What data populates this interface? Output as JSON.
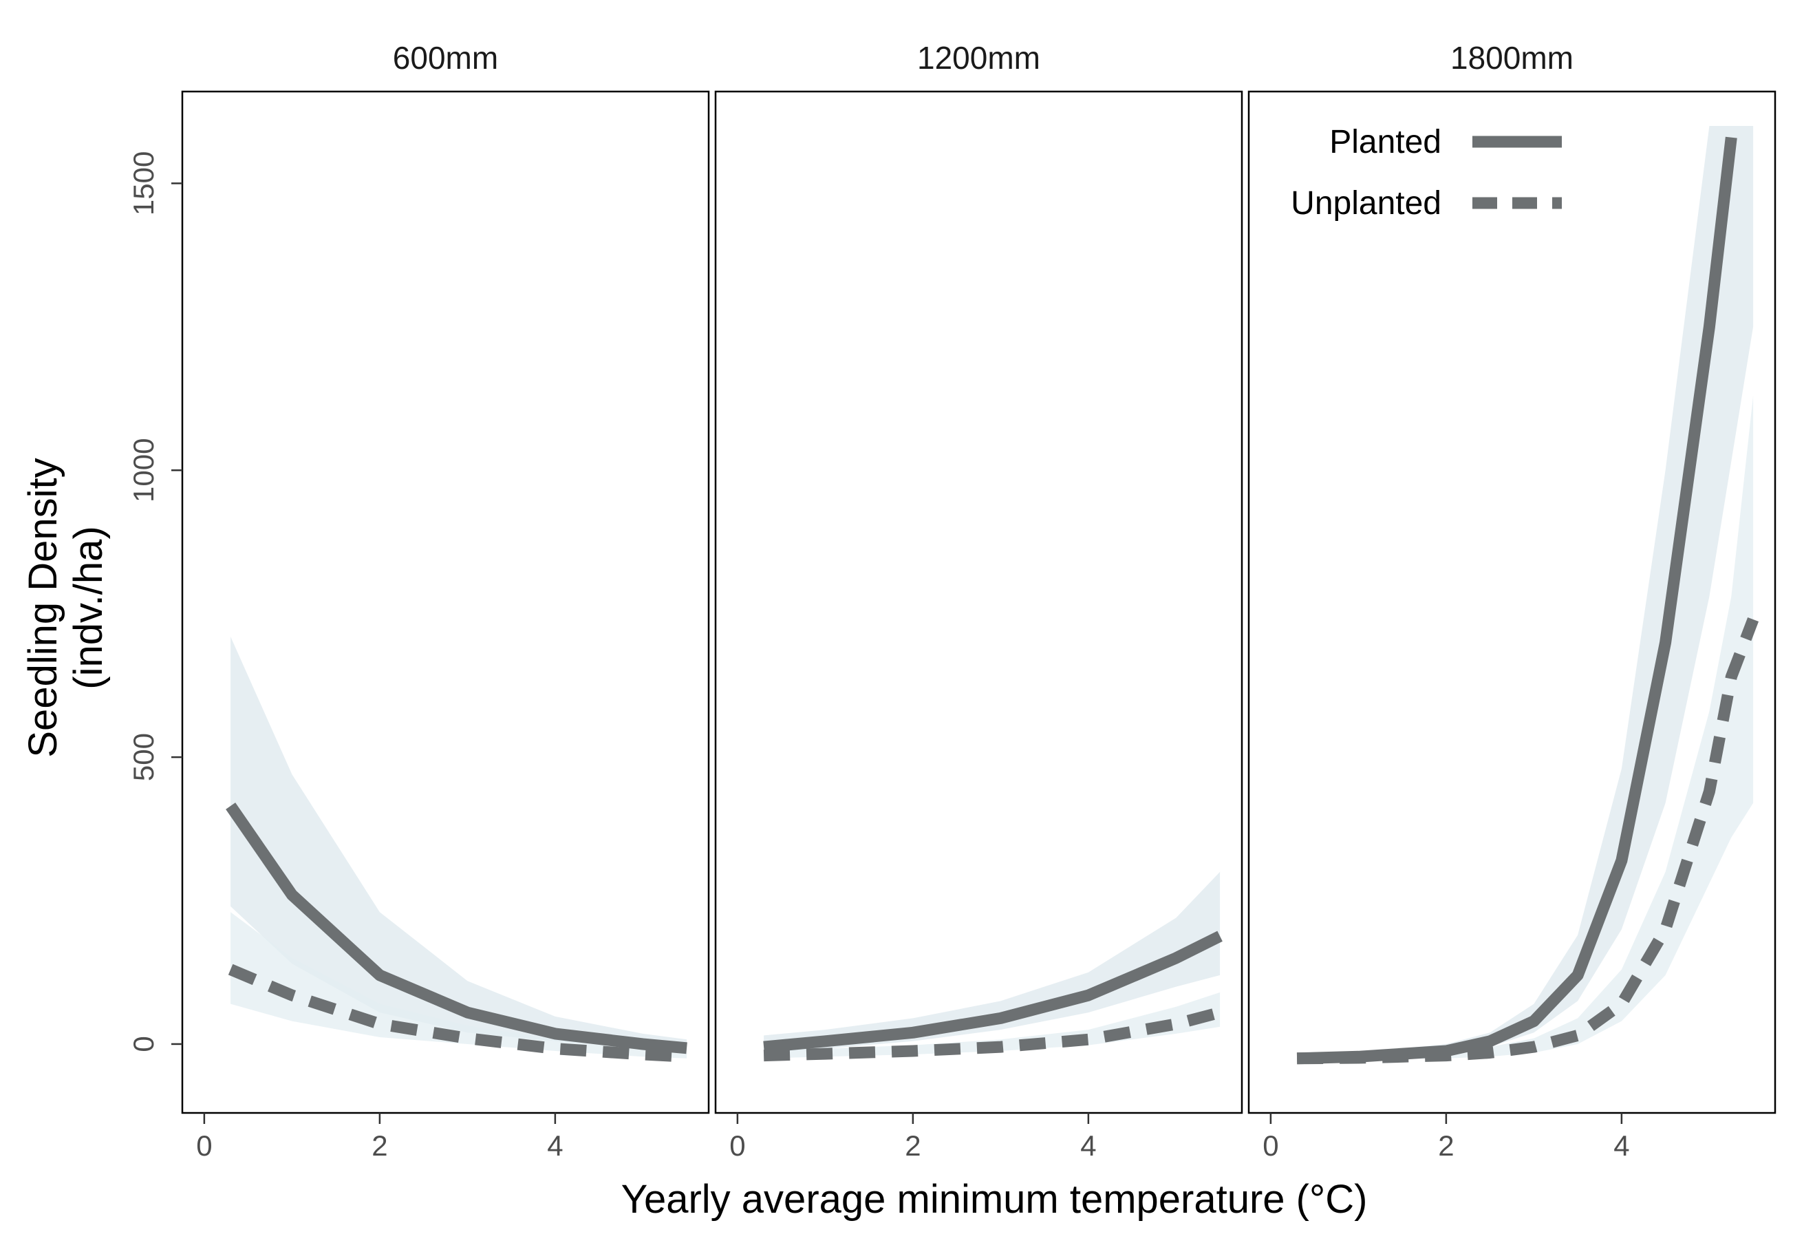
{
  "chart_data": {
    "type": "line",
    "xlabel": "Yearly average minimum temperature (°C)",
    "ylabel_lines": [
      "Seedling Density",
      "(indv./ha)"
    ],
    "xlim": [
      -0.25,
      5.75
    ],
    "ylim": [
      -120,
      1660
    ],
    "xticks": [
      0,
      2,
      4
    ],
    "yticks": [
      0,
      500,
      1000,
      1500
    ],
    "colors": {
      "line": "#6c7072",
      "ribbon_planted": "#dde8ee",
      "ribbon_unplanted": "#e3edf2"
    },
    "legend": {
      "position": "top-right of last panel",
      "entries": [
        {
          "label": "Planted",
          "style": "solid"
        },
        {
          "label": "Unplanted",
          "style": "dashed"
        }
      ]
    },
    "panels": [
      {
        "title": "600mm",
        "x": [
          0.3,
          1.0,
          2.0,
          3.0,
          4.0,
          5.0,
          5.5
        ],
        "series": [
          {
            "name": "Planted",
            "style": "solid",
            "y": [
              415,
              260,
              120,
              55,
              18,
              0,
              -7
            ],
            "lower": [
              240,
              140,
              55,
              20,
              5,
              -5,
              -10
            ],
            "upper": [
              710,
              470,
              230,
              110,
              48,
              18,
              8
            ]
          },
          {
            "name": "Unplanted",
            "style": "dashed",
            "y": [
              130,
              85,
              35,
              10,
              -8,
              -18,
              -22
            ],
            "lower": [
              70,
              40,
              12,
              0,
              -12,
              -22,
              -25
            ],
            "upper": [
              230,
              150,
              70,
              32,
              8,
              -8,
              -15
            ]
          }
        ]
      },
      {
        "title": "1200mm",
        "x": [
          0.3,
          1.0,
          2.0,
          3.0,
          4.0,
          5.0,
          5.5
        ],
        "series": [
          {
            "name": "Planted",
            "style": "solid",
            "y": [
              -5,
              5,
              20,
              45,
              85,
              150,
              188
            ],
            "lower": [
              -15,
              -8,
              5,
              25,
              55,
              100,
              120
            ],
            "upper": [
              15,
              25,
              45,
              75,
              125,
              220,
              300
            ]
          },
          {
            "name": "Unplanted",
            "style": "dashed",
            "y": [
              -20,
              -17,
              -12,
              -5,
              8,
              35,
              55
            ],
            "lower": [
              -25,
              -22,
              -18,
              -12,
              -2,
              18,
              30
            ],
            "upper": [
              -12,
              -8,
              -2,
              8,
              25,
              65,
              90
            ]
          }
        ]
      },
      {
        "title": "1800mm",
        "x": [
          0.3,
          1.0,
          2.0,
          2.5,
          3.0,
          3.5,
          4.0,
          4.5,
          5.0,
          5.25,
          5.5
        ],
        "series": [
          {
            "name": "Planted",
            "style": "solid",
            "x": [
              0.3,
              1.0,
              2.0,
              2.5,
              3.0,
              3.5,
              4.0,
              4.5,
              5.0,
              5.25
            ],
            "y": [
              -25,
              -22,
              -12,
              5,
              40,
              120,
              320,
              700,
              1250,
              1580
            ],
            "lower_x": [
              0.3,
              1.0,
              2.0,
              2.5,
              3.0,
              3.5,
              4.0,
              4.5,
              5.0,
              5.5
            ],
            "lower": [
              -30,
              -28,
              -20,
              -5,
              20,
              75,
              200,
              420,
              780,
              1250
            ],
            "upper_x": [
              0.3,
              1.0,
              2.0,
              2.5,
              3.0,
              3.5,
              4.0,
              4.5,
              5.0,
              5.5
            ],
            "upper": [
              -20,
              -15,
              0,
              20,
              70,
              190,
              480,
              1000,
              1600,
              1600
            ]
          },
          {
            "name": "Unplanted",
            "style": "dashed",
            "x": [
              0.3,
              1.0,
              2.0,
              2.5,
              3.0,
              3.5,
              4.0,
              4.5,
              5.0,
              5.25,
              5.5
            ],
            "y": [
              -25,
              -24,
              -20,
              -15,
              -5,
              15,
              70,
              200,
              440,
              640,
              740
            ],
            "lower": [
              -28,
              -27,
              -25,
              -22,
              -15,
              0,
              40,
              120,
              280,
              360,
              420
            ],
            "upper": [
              -20,
              -18,
              -12,
              -5,
              10,
              45,
              130,
              300,
              580,
              780,
              1130
            ]
          }
        ]
      }
    ]
  }
}
